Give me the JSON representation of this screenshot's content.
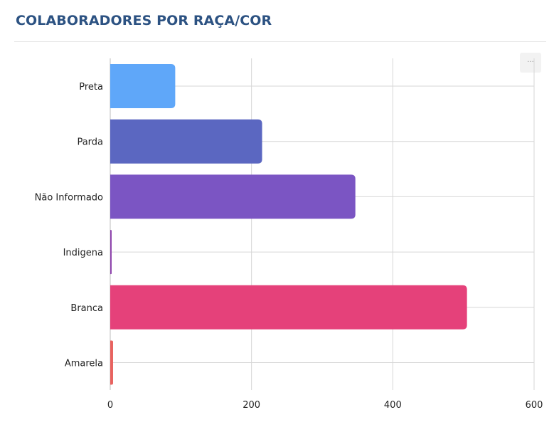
{
  "header": {
    "title": "COLABORADORES POR RAÇA/COR",
    "menu_icon": "ellipsis-icon",
    "menu_glyph": "···"
  },
  "colors": {
    "title": "#2c5282",
    "grid": "#d6d6d6",
    "axis": "#bdbdbd"
  },
  "chart_data": {
    "type": "bar",
    "orientation": "horizontal",
    "title": "",
    "xlabel": "",
    "ylabel": "",
    "xlim": [
      0,
      600
    ],
    "x_ticks": [
      0,
      200,
      400,
      600
    ],
    "x_tick_labels": [
      "0",
      "200",
      "400",
      "600"
    ],
    "grid": true,
    "categories": [
      "Preta",
      "Parda",
      "Não Informado",
      "Indigena",
      "Branca",
      "Amarela"
    ],
    "values": [
      92,
      215,
      347,
      2,
      505,
      4
    ],
    "bar_colors": [
      "#5fa7f9",
      "#5b67c1",
      "#7b55c3",
      "#8e44ad",
      "#e5417a",
      "#e8625f"
    ]
  }
}
